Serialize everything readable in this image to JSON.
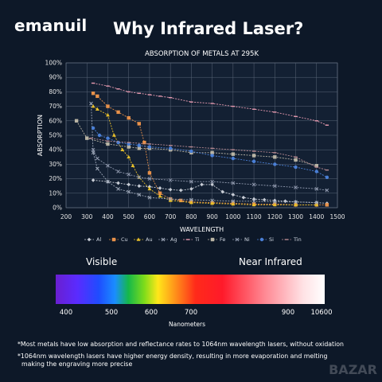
{
  "brand": "emanuil",
  "headline": "Why Infrared Laser?",
  "watermark": "BAZAR",
  "chart_data": {
    "type": "line",
    "title": "ABSORPTION OF METALS AT 295K",
    "xlabel": "WAVELENGTH",
    "ylabel": "ABSORPTION",
    "xlim": [
      200,
      1500
    ],
    "ylim": [
      0,
      100
    ],
    "x_ticks": [
      "200",
      "300",
      "400",
      "500",
      "600",
      "700",
      "800",
      "900",
      "1000",
      "1100",
      "1200",
      "1300",
      "1400",
      "1500"
    ],
    "y_ticks": [
      "0%",
      "10%",
      "20%",
      "30%",
      "40%",
      "50%",
      "60%",
      "70%",
      "80%",
      "90%",
      "100%"
    ],
    "grid": true,
    "legend_position": "bottom",
    "series": [
      {
        "name": "Al",
        "color": "#c8cdd6",
        "marker": "diamond",
        "points": [
          [
            330,
            19
          ],
          [
            400,
            18
          ],
          [
            450,
            17
          ],
          [
            500,
            16
          ],
          [
            550,
            15
          ],
          [
            600,
            14.5
          ],
          [
            650,
            13.5
          ],
          [
            700,
            12.5
          ],
          [
            750,
            12
          ],
          [
            800,
            13
          ],
          [
            850,
            16
          ],
          [
            900,
            16
          ],
          [
            950,
            11
          ],
          [
            1000,
            9
          ],
          [
            1050,
            7
          ],
          [
            1100,
            6
          ],
          [
            1150,
            5.5
          ],
          [
            1200,
            5
          ],
          [
            1250,
            4.5
          ],
          [
            1300,
            4
          ],
          [
            1400,
            3.5
          ],
          [
            1450,
            3
          ]
        ]
      },
      {
        "name": "Cu",
        "color": "#e8914a",
        "marker": "square",
        "points": [
          [
            330,
            79
          ],
          [
            350,
            77
          ],
          [
            400,
            70
          ],
          [
            450,
            66
          ],
          [
            500,
            62
          ],
          [
            550,
            58
          ],
          [
            575,
            45
          ],
          [
            600,
            24
          ],
          [
            650,
            10
          ],
          [
            700,
            6
          ],
          [
            750,
            5
          ],
          [
            800,
            4
          ],
          [
            900,
            3.5
          ],
          [
            1000,
            3
          ],
          [
            1100,
            2.5
          ],
          [
            1200,
            2.5
          ],
          [
            1300,
            2
          ],
          [
            1400,
            2
          ],
          [
            1450,
            2
          ]
        ]
      },
      {
        "name": "Au",
        "color": "#e8c02a",
        "marker": "triangle",
        "points": [
          [
            330,
            70
          ],
          [
            350,
            68
          ],
          [
            400,
            64
          ],
          [
            430,
            50
          ],
          [
            470,
            40
          ],
          [
            500,
            35
          ],
          [
            520,
            29
          ],
          [
            550,
            21
          ],
          [
            600,
            13
          ],
          [
            650,
            8
          ],
          [
            700,
            5
          ],
          [
            800,
            3.5
          ],
          [
            900,
            3
          ],
          [
            1000,
            2.5
          ],
          [
            1100,
            2
          ],
          [
            1200,
            2
          ],
          [
            1300,
            2
          ],
          [
            1400,
            2
          ]
        ]
      },
      {
        "name": "Ag",
        "color": "#9aa4b5",
        "marker": "cross",
        "points": [
          [
            320,
            72
          ],
          [
            330,
            38
          ],
          [
            350,
            27
          ],
          [
            400,
            18
          ],
          [
            450,
            13
          ],
          [
            500,
            11
          ],
          [
            550,
            9
          ],
          [
            600,
            7
          ],
          [
            700,
            6
          ],
          [
            800,
            5.5
          ],
          [
            900,
            5
          ],
          [
            1000,
            4.5
          ],
          [
            1100,
            4.5
          ],
          [
            1200,
            4
          ],
          [
            1300,
            4
          ],
          [
            1400,
            3.5
          ]
        ]
      },
      {
        "name": "Ti",
        "color": "#e79ab0",
        "marker": "dash",
        "points": [
          [
            330,
            86
          ],
          [
            400,
            84
          ],
          [
            450,
            82
          ],
          [
            500,
            80
          ],
          [
            550,
            79
          ],
          [
            600,
            78
          ],
          [
            650,
            77
          ],
          [
            700,
            76
          ],
          [
            800,
            73
          ],
          [
            900,
            72
          ],
          [
            1000,
            70
          ],
          [
            1100,
            68
          ],
          [
            1200,
            66
          ],
          [
            1300,
            63
          ],
          [
            1400,
            60
          ],
          [
            1450,
            57
          ]
        ]
      },
      {
        "name": "Fe",
        "color": "#b9b4a4",
        "marker": "square",
        "points": [
          [
            250,
            60
          ],
          [
            300,
            48
          ],
          [
            400,
            44
          ],
          [
            500,
            42
          ],
          [
            550,
            41
          ],
          [
            600,
            41
          ],
          [
            700,
            40
          ],
          [
            800,
            38
          ],
          [
            900,
            38
          ],
          [
            1000,
            37
          ],
          [
            1100,
            36
          ],
          [
            1200,
            35
          ],
          [
            1300,
            33
          ],
          [
            1400,
            29
          ]
        ]
      },
      {
        "name": "Ni",
        "color": "#8f98ad",
        "marker": "cross",
        "points": [
          [
            330,
            40
          ],
          [
            350,
            34
          ],
          [
            400,
            29
          ],
          [
            450,
            25
          ],
          [
            500,
            23
          ],
          [
            550,
            21
          ],
          [
            600,
            20
          ],
          [
            700,
            19
          ],
          [
            800,
            18
          ],
          [
            900,
            18
          ],
          [
            1000,
            17
          ],
          [
            1100,
            16
          ],
          [
            1200,
            15
          ],
          [
            1300,
            14
          ],
          [
            1400,
            13
          ],
          [
            1450,
            12
          ]
        ]
      },
      {
        "name": "Si",
        "color": "#4a7fd6",
        "marker": "circle",
        "points": [
          [
            330,
            55
          ],
          [
            360,
            50
          ],
          [
            400,
            48
          ],
          [
            450,
            45
          ],
          [
            500,
            44
          ],
          [
            550,
            43
          ],
          [
            600,
            42
          ],
          [
            700,
            41
          ],
          [
            800,
            39
          ],
          [
            900,
            36
          ],
          [
            1000,
            34
          ],
          [
            1100,
            32
          ],
          [
            1200,
            30
          ],
          [
            1300,
            28
          ],
          [
            1400,
            25
          ],
          [
            1450,
            21
          ]
        ]
      },
      {
        "name": "Tin",
        "color": "#b88a92",
        "marker": "dash",
        "points": [
          [
            320,
            48
          ],
          [
            400,
            46
          ],
          [
            500,
            45
          ],
          [
            600,
            44
          ],
          [
            700,
            43
          ],
          [
            800,
            42
          ],
          [
            900,
            41
          ],
          [
            1000,
            40
          ],
          [
            1100,
            39
          ],
          [
            1200,
            38
          ],
          [
            1300,
            35
          ],
          [
            1400,
            28
          ],
          [
            1450,
            26
          ]
        ]
      }
    ]
  },
  "spectrum": {
    "visible_label": "Visible",
    "ir_label": "Near Infrared",
    "ticks": [
      {
        "label": "400",
        "left": 83
      },
      {
        "label": "500",
        "left": 140
      },
      {
        "label": "600",
        "left": 190
      },
      {
        "label": "700",
        "left": 240
      },
      {
        "label": "900",
        "left": 362
      },
      {
        "label": "10600",
        "left": 404
      }
    ],
    "unit": "Nanometers"
  },
  "notes": [
    "*Most metals have low absorption and reflectance rates to 1064nm wavelength lasers, without oxidation",
    "*1064nm wavelength lasers have higher energy density, resulting in more evaporation and melting",
    "making the engraving more precise"
  ]
}
